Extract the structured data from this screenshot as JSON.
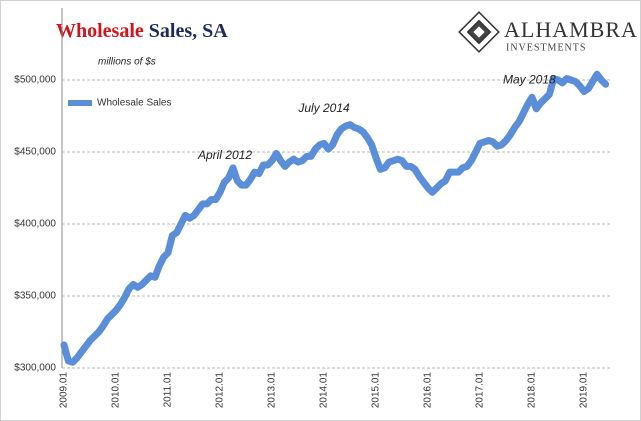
{
  "chart_data": {
    "type": "line",
    "title": "Wholesale Sales, SA",
    "subtitle": "millions of $s",
    "logo": {
      "name": "ALHAMBRA",
      "tagline": "INVESTMENTS"
    },
    "annotations": [
      {
        "text": "April 2012",
        "index": 39
      },
      {
        "text": "July 2014",
        "index": 66
      },
      {
        "text": "May 2018",
        "index": 112
      }
    ],
    "categories": [
      "2009.01",
      null,
      null,
      null,
      null,
      null,
      null,
      null,
      null,
      null,
      null,
      null,
      "2010.01",
      null,
      null,
      null,
      null,
      null,
      null,
      null,
      null,
      null,
      null,
      null,
      "2011.01",
      null,
      null,
      null,
      null,
      null,
      null,
      null,
      null,
      null,
      null,
      null,
      "2012.01",
      null,
      null,
      null,
      null,
      null,
      null,
      null,
      null,
      null,
      null,
      null,
      "2013.01",
      null,
      null,
      null,
      null,
      null,
      null,
      null,
      null,
      null,
      null,
      null,
      "2014.01",
      null,
      null,
      null,
      null,
      null,
      null,
      null,
      null,
      null,
      null,
      null,
      "2015.01",
      null,
      null,
      null,
      null,
      null,
      null,
      null,
      null,
      null,
      null,
      null,
      "2016.01",
      null,
      null,
      null,
      null,
      null,
      null,
      null,
      null,
      null,
      null,
      null,
      "2017.01",
      null,
      null,
      null,
      null,
      null,
      null,
      null,
      null,
      null,
      null,
      null,
      "2018.01",
      null,
      null,
      null,
      null,
      null,
      null,
      null,
      null,
      null,
      null,
      null,
      "2019.01",
      null,
      null,
      null,
      null,
      null
    ],
    "series": [
      {
        "name": "Wholesale Sales",
        "color": "#5b8ed8",
        "values": [
          316000,
          305000,
          304000,
          307000,
          311000,
          315000,
          319000,
          322000,
          325000,
          329000,
          334000,
          337000,
          340000,
          344000,
          349000,
          355000,
          358000,
          356000,
          358000,
          361000,
          364000,
          363000,
          371000,
          377000,
          380000,
          392000,
          394000,
          400000,
          406000,
          404000,
          406000,
          410000,
          414000,
          414000,
          417000,
          417000,
          422000,
          429000,
          432000,
          439000,
          430000,
          427000,
          427000,
          431000,
          436000,
          435000,
          441000,
          441000,
          444000,
          449000,
          444000,
          440000,
          443000,
          445000,
          443000,
          444000,
          447000,
          447000,
          452000,
          455000,
          456000,
          452000,
          455000,
          462000,
          466000,
          468000,
          469000,
          467000,
          466000,
          464000,
          460000,
          455000,
          446000,
          438000,
          439000,
          443000,
          444000,
          445000,
          444000,
          440000,
          440000,
          438000,
          433000,
          429000,
          425000,
          422000,
          425000,
          428000,
          430000,
          436000,
          436000,
          436000,
          439000,
          440000,
          444000,
          450000,
          456000,
          457000,
          458000,
          457000,
          454000,
          455000,
          458000,
          462000,
          467000,
          471000,
          477000,
          483000,
          488000,
          480000,
          484000,
          487000,
          490000,
          501000,
          500000,
          498000,
          501000,
          500000,
          499000,
          496000,
          492000,
          494000,
          499000,
          504000,
          500000,
          497000
        ]
      }
    ],
    "ylim": [
      300000,
      550000
    ],
    "yticks": [
      {
        "value": 300000,
        "label": "$300,000"
      },
      {
        "value": 350000,
        "label": "$350,000"
      },
      {
        "value": 400000,
        "label": "$400,000"
      },
      {
        "value": 450000,
        "label": "$450,000"
      },
      {
        "value": 500000,
        "label": "$500,000"
      }
    ],
    "grid": true,
    "legend": "upper left"
  }
}
